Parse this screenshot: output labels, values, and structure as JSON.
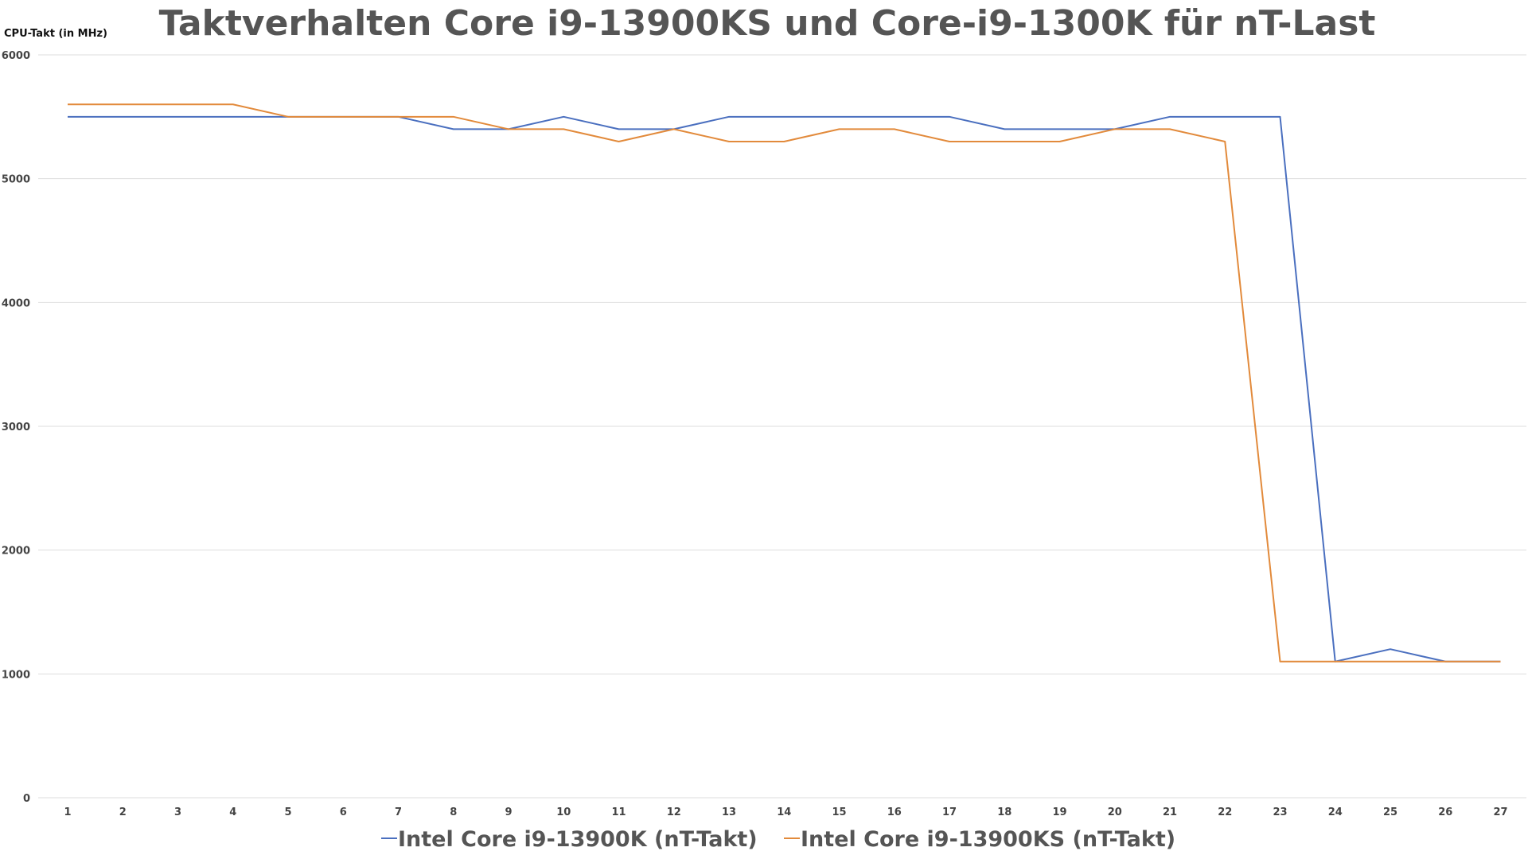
{
  "chart_data": {
    "type": "line",
    "title": "Taktverhalten Core i9-13900KS und Core-i9-1300K für nT-Last",
    "ylabel": "CPU-Takt (in MHz)",
    "xlabel": "",
    "ylim": [
      0,
      6000
    ],
    "yticks": [
      "0",
      "1000",
      "2000",
      "3000",
      "4000",
      "5000",
      "6000"
    ],
    "x": [
      "1",
      "2",
      "3",
      "4",
      "5",
      "6",
      "7",
      "8",
      "9",
      "10",
      "11",
      "12",
      "13",
      "14",
      "15",
      "16",
      "17",
      "18",
      "19",
      "20",
      "21",
      "22",
      "23",
      "24",
      "25",
      "26",
      "27"
    ],
    "grid": true,
    "legend_position": "bottom",
    "series": [
      {
        "name": "Intel Core i9-13900K (nT-Takt)",
        "color": "#4a6fbf",
        "values": [
          5500,
          5500,
          5500,
          5500,
          5500,
          5500,
          5500,
          5400,
          5400,
          5500,
          5400,
          5400,
          5500,
          5500,
          5500,
          5500,
          5500,
          5400,
          5400,
          5400,
          5500,
          5500,
          5500,
          1100,
          1200,
          1100,
          1100
        ]
      },
      {
        "name": "Intel Core i9-13900KS (nT-Takt)",
        "color": "#e28a3b",
        "values": [
          5600,
          5600,
          5600,
          5600,
          5500,
          5500,
          5500,
          5500,
          5400,
          5400,
          5300,
          5400,
          5300,
          5300,
          5400,
          5400,
          5300,
          5300,
          5300,
          5400,
          5400,
          5300,
          1100,
          1100,
          1100,
          1100,
          1100
        ]
      }
    ]
  }
}
